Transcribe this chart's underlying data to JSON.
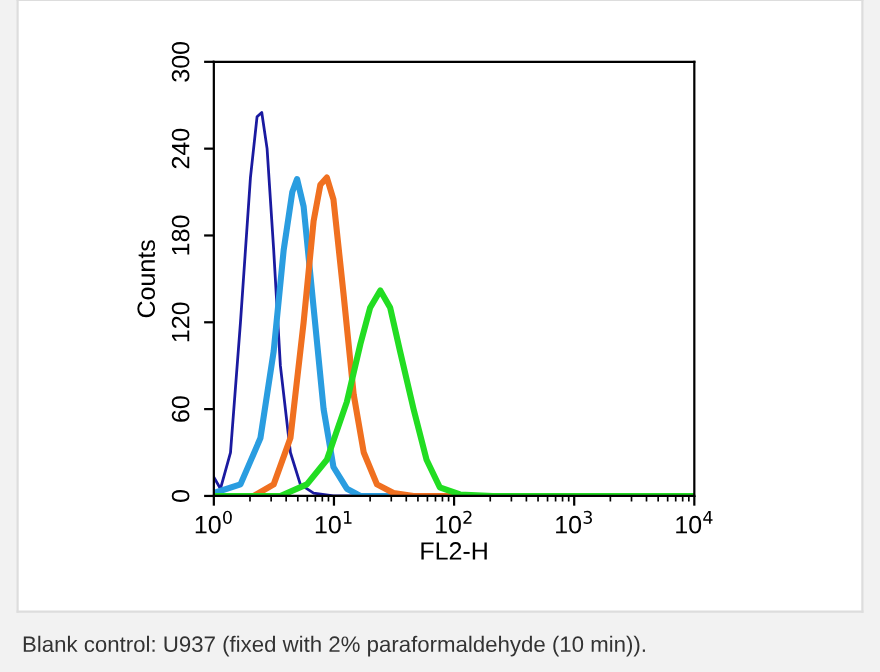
{
  "chart_data": {
    "type": "line",
    "xlabel": "FL2-H",
    "ylabel": "Counts",
    "log": "x",
    "xlim": [
      1,
      10000
    ],
    "xticks": [
      {
        "value": 1,
        "label": "10$^{0}$"
      },
      {
        "value": 10,
        "label": "10$^{1}$"
      },
      {
        "value": 100,
        "label": "10$^{2}$"
      },
      {
        "value": 1000,
        "label": "10$^{3}$"
      },
      {
        "value": 10000,
        "label": "10$^{4}$"
      }
    ],
    "ylim": [
      0,
      300
    ],
    "yticks": [
      0,
      60,
      120,
      180,
      240,
      300
    ],
    "grid": false,
    "marker": "none",
    "line_style": "solid",
    "series": [
      {
        "color": "#1a1aa0",
        "x": [
          1,
          1.136,
          1.376,
          1.666,
          2.017,
          2.289,
          2.506,
          2.775,
          3.149,
          3.58,
          4.34,
          5.25,
          6.77,
          9.9,
          10000
        ],
        "values": [
          13,
          5,
          30,
          120,
          220,
          262,
          265,
          240,
          170,
          90,
          30,
          8,
          2,
          0,
          0
        ]
      },
      {
        "color": "#2a9de0",
        "x": [
          1,
          1.666,
          2.443,
          3.149,
          3.815,
          4.5,
          4.93,
          5.59,
          6.77,
          8.2,
          9.9,
          12.8,
          16.6,
          10000
        ],
        "values": [
          2,
          8,
          40,
          100,
          170,
          210,
          219,
          200,
          130,
          60,
          20,
          5,
          0,
          0
        ]
      },
      {
        "color": "#f07020",
        "x": [
          1,
          2.15,
          3.15,
          4.34,
          5.59,
          6.77,
          7.7,
          8.73,
          9.9,
          12.0,
          14.6,
          17.7,
          22.8,
          31.3,
          46,
          10000
        ],
        "values": [
          0,
          0,
          8,
          40,
          120,
          190,
          215,
          220,
          205,
          140,
          70,
          30,
          8,
          2,
          0,
          0
        ]
      },
      {
        "color": "#22dd22",
        "x": [
          1,
          3.58,
          5.95,
          8.73,
          12.8,
          16.6,
          20.0,
          24.3,
          29.4,
          35.5,
          46,
          59,
          76,
          112,
          211,
          10000
        ],
        "values": [
          0,
          0,
          8,
          25,
          65,
          105,
          130,
          142,
          130,
          100,
          60,
          25,
          6,
          1,
          0,
          0
        ]
      }
    ],
    "annotations": [
      "Blank control: U937 (fixed with 2% paraformaldehyde (10 min))."
    ]
  }
}
